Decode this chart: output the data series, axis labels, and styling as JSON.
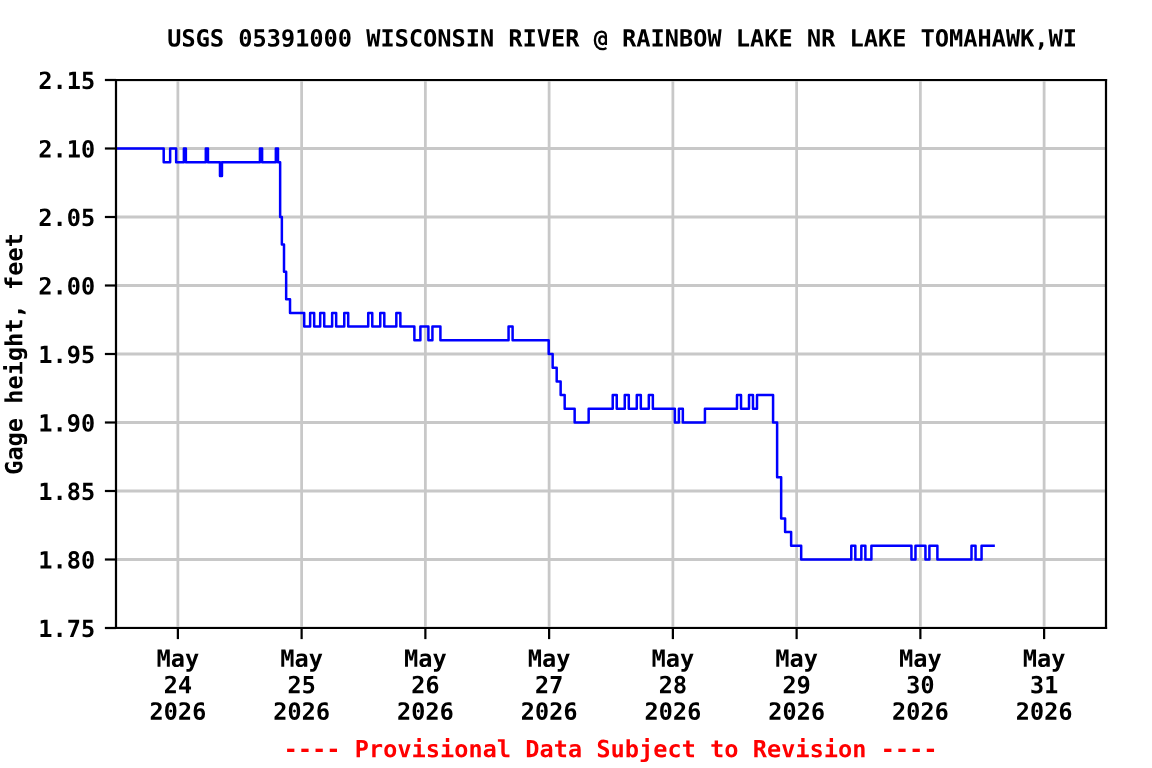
{
  "chart_data": {
    "type": "step",
    "title": "USGS 05391000 WISCONSIN RIVER @ RAINBOW LAKE NR LAKE TOMAHAWK,WI",
    "ylabel": "Gage height, feet",
    "annotations": [
      "---- Provisional Data Subject to Revision ----"
    ],
    "x": [
      "2026-05-23T12:00",
      "2026-05-23T21:15",
      "2026-05-23T22:30",
      "2026-05-23T23:40",
      "2026-05-24T01:10",
      "2026-05-24T01:33",
      "2026-05-24T05:25",
      "2026-05-24T05:50",
      "2026-05-24T08:10",
      "2026-05-24T08:33",
      "2026-05-24T15:55",
      "2026-05-24T16:20",
      "2026-05-24T19:00",
      "2026-05-24T19:25",
      "2026-05-24T19:50",
      "2026-05-24T20:10",
      "2026-05-24T20:35",
      "2026-05-24T21:00",
      "2026-05-24T21:45",
      "2026-05-24T22:30",
      "2026-05-25T00:30",
      "2026-05-25T01:39",
      "2026-05-25T02:26",
      "2026-05-25T03:36",
      "2026-05-25T04:23",
      "2026-05-25T05:55",
      "2026-05-25T06:42",
      "2026-05-25T08:16",
      "2026-05-25T09:02",
      "2026-05-25T12:55",
      "2026-05-25T13:42",
      "2026-05-25T15:15",
      "2026-05-25T16:02",
      "2026-05-25T18:22",
      "2026-05-25T19:09",
      "2026-05-25T21:52",
      "2026-05-25T23:02",
      "2026-05-26T00:35",
      "2026-05-26T01:22",
      "2026-05-26T02:55",
      "2026-05-26T16:08",
      "2026-05-26T16:55",
      "2026-05-26T23:55",
      "2026-05-27T00:41",
      "2026-05-27T01:28",
      "2026-05-27T02:14",
      "2026-05-27T03:01",
      "2026-05-27T04:57",
      "2026-05-27T07:40",
      "2026-05-27T12:20",
      "2026-05-27T13:07",
      "2026-05-27T14:40",
      "2026-05-27T15:27",
      "2026-05-27T17:00",
      "2026-05-27T17:47",
      "2026-05-27T19:20",
      "2026-05-27T20:07",
      "2026-05-28T00:23",
      "2026-05-28T01:10",
      "2026-05-28T01:56",
      "2026-05-28T06:13",
      "2026-05-28T12:26",
      "2026-05-28T13:13",
      "2026-05-28T14:46",
      "2026-05-28T15:32",
      "2026-05-28T16:19",
      "2026-05-28T19:26",
      "2026-05-28T20:13",
      "2026-05-28T21:00",
      "2026-05-28T21:46",
      "2026-05-28T22:56",
      "2026-05-29T00:53",
      "2026-05-29T10:36",
      "2026-05-29T11:23",
      "2026-05-29T12:33",
      "2026-05-29T13:20",
      "2026-05-29T14:30",
      "2026-05-29T22:16",
      "2026-05-29T23:03",
      "2026-05-30T00:59",
      "2026-05-30T01:45",
      "2026-05-30T03:18",
      "2026-05-30T09:55",
      "2026-05-30T10:42",
      "2026-05-30T11:52",
      "2026-05-30T14:12"
    ],
    "series": [
      {
        "color": "#0000ff",
        "values": [
          2.1,
          2.09,
          2.1,
          2.09,
          2.1,
          2.09,
          2.1,
          2.09,
          2.08,
          2.09,
          2.1,
          2.09,
          2.1,
          2.09,
          2.05,
          2.03,
          2.01,
          1.99,
          1.98,
          1.98,
          1.97,
          1.98,
          1.97,
          1.98,
          1.97,
          1.98,
          1.97,
          1.98,
          1.97,
          1.98,
          1.97,
          1.98,
          1.97,
          1.98,
          1.97,
          1.96,
          1.97,
          1.96,
          1.97,
          1.96,
          1.97,
          1.96,
          1.95,
          1.94,
          1.93,
          1.92,
          1.91,
          1.9,
          1.91,
          1.92,
          1.91,
          1.92,
          1.91,
          1.92,
          1.91,
          1.92,
          1.91,
          1.9,
          1.91,
          1.9,
          1.91,
          1.92,
          1.91,
          1.92,
          1.91,
          1.92,
          1.9,
          1.86,
          1.83,
          1.82,
          1.81,
          1.8,
          1.81,
          1.8,
          1.81,
          1.8,
          1.81,
          1.8,
          1.81,
          1.8,
          1.81,
          1.8,
          1.81,
          1.8,
          1.81,
          1.81
        ]
      }
    ],
    "xlim": [
      "2026-05-23T12:00",
      "2026-05-31T12:00"
    ],
    "xticks": [
      {
        "value": "2026-05-24",
        "label": "May\n24\n2026"
      },
      {
        "value": "2026-05-25",
        "label": "May\n25\n2026"
      },
      {
        "value": "2026-05-26",
        "label": "May\n26\n2026"
      },
      {
        "value": "2026-05-27",
        "label": "May\n27\n2026"
      },
      {
        "value": "2026-05-28",
        "label": "May\n28\n2026"
      },
      {
        "value": "2026-05-29",
        "label": "May\n29\n2026"
      },
      {
        "value": "2026-05-30",
        "label": "May\n30\n2026"
      },
      {
        "value": "2026-05-31",
        "label": "May\n31\n2026"
      }
    ],
    "ylim": [
      1.75,
      2.15
    ],
    "yticks": [
      1.75,
      {
        "value": 1.8,
        "label": "1.80"
      },
      1.85,
      {
        "value": 1.9,
        "label": "1.90"
      },
      1.95,
      {
        "value": 2.0,
        "label": "2.00"
      },
      2.05,
      {
        "value": 2.1,
        "label": "2.10"
      },
      2.15
    ],
    "grid": true
  }
}
